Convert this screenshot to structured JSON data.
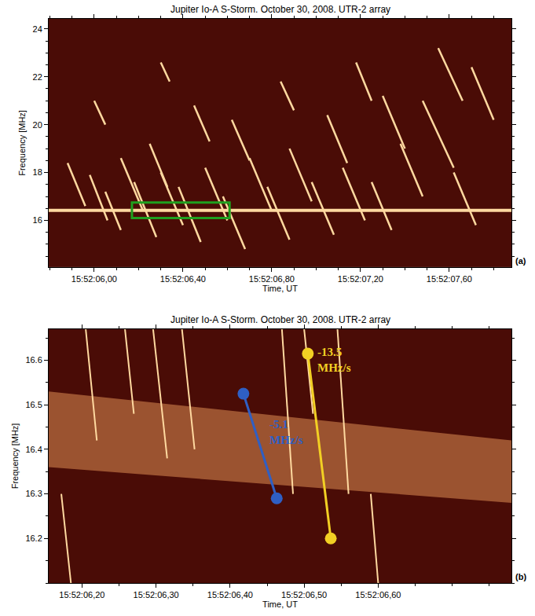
{
  "chart_data": [
    {
      "type": "line",
      "title": "Jupiter Io-A S-Storm. October 30, 2008. UTR-2 array",
      "x_label": "Time, UT",
      "y_label": "Frequency [MHz]",
      "panel": "(a)",
      "color": "#ffd9a0",
      "xlim": [
        5.795,
        7.88
      ],
      "ylim": [
        14.05,
        24.42
      ],
      "xticks": [
        {
          "value": 6.0,
          "label": "15:52:06,00"
        },
        {
          "value": 6.4,
          "label": "15:52:06,40"
        },
        {
          "value": 6.8,
          "label": "15:52:06,80"
        },
        {
          "value": 7.2,
          "label": "15:52:07,20"
        },
        {
          "value": 7.6,
          "label": "15:52:07,60"
        }
      ],
      "yticks": [
        16,
        18,
        20,
        22,
        24
      ],
      "bursts": [
        {
          "x": [
            5.88,
            5.96
          ],
          "y": [
            18.4,
            16.6
          ]
        },
        {
          "x": [
            5.98,
            6.06
          ],
          "y": [
            17.9,
            16.0
          ]
        },
        {
          "x": [
            6.05,
            6.12
          ],
          "y": [
            17.2,
            15.6
          ]
        },
        {
          "x": [
            6.12,
            6.22
          ],
          "y": [
            18.6,
            16.4
          ]
        },
        {
          "x": [
            6.18,
            6.28
          ],
          "y": [
            17.6,
            15.3
          ]
        },
        {
          "x": [
            6.25,
            6.33
          ],
          "y": [
            19.2,
            17.4
          ]
        },
        {
          "x": [
            6.3,
            6.4
          ],
          "y": [
            18.0,
            15.8
          ]
        },
        {
          "x": [
            6.38,
            6.48
          ],
          "y": [
            17.4,
            15.1
          ]
        },
        {
          "x": [
            6.45,
            6.52
          ],
          "y": [
            20.8,
            19.3
          ]
        },
        {
          "x": [
            6.5,
            6.6
          ],
          "y": [
            18.2,
            16.0
          ]
        },
        {
          "x": [
            6.58,
            6.68
          ],
          "y": [
            17.0,
            14.8
          ]
        },
        {
          "x": [
            6.62,
            6.7
          ],
          "y": [
            20.2,
            18.5
          ]
        },
        {
          "x": [
            6.7,
            6.8
          ],
          "y": [
            18.6,
            16.4
          ]
        },
        {
          "x": [
            6.78,
            6.88
          ],
          "y": [
            17.4,
            15.2
          ]
        },
        {
          "x": [
            6.84,
            6.9
          ],
          "y": [
            21.8,
            20.6
          ]
        },
        {
          "x": [
            6.88,
            6.98
          ],
          "y": [
            19.0,
            16.8
          ]
        },
        {
          "x": [
            6.98,
            7.08
          ],
          "y": [
            17.6,
            15.4
          ]
        },
        {
          "x": [
            7.05,
            7.14
          ],
          "y": [
            20.4,
            18.4
          ]
        },
        {
          "x": [
            7.12,
            7.22
          ],
          "y": [
            18.2,
            16.0
          ]
        },
        {
          "x": [
            7.18,
            7.25
          ],
          "y": [
            22.6,
            21.0
          ]
        },
        {
          "x": [
            7.25,
            7.34
          ],
          "y": [
            17.6,
            15.6
          ]
        },
        {
          "x": [
            7.3,
            7.4
          ],
          "y": [
            21.2,
            19.0
          ]
        },
        {
          "x": [
            7.38,
            7.48
          ],
          "y": [
            19.2,
            17.0
          ]
        },
        {
          "x": [
            7.48,
            7.62
          ],
          "y": [
            21.0,
            18.2
          ]
        },
        {
          "x": [
            7.55,
            7.66
          ],
          "y": [
            23.2,
            21.0
          ]
        },
        {
          "x": [
            7.62,
            7.72
          ],
          "y": [
            18.0,
            15.8
          ]
        },
        {
          "x": [
            6.3,
            6.34
          ],
          "y": [
            22.6,
            21.8
          ]
        },
        {
          "x": [
            6.0,
            6.05
          ],
          "y": [
            21.0,
            20.0
          ]
        },
        {
          "x": [
            7.7,
            7.8
          ],
          "y": [
            22.4,
            20.2
          ]
        }
      ],
      "band": {
        "x": [
          5.795,
          7.88
        ],
        "y": [
          16.42,
          16.42
        ]
      },
      "highlight": {
        "x": [
          6.17,
          6.61
        ],
        "y": [
          16.1,
          16.75
        ],
        "color": "#1fa01f"
      }
    },
    {
      "type": "line",
      "title": "Jupiter Io-A S-Storm. October 30, 2008. UTR-2 array",
      "x_label": "Time, UT",
      "y_label": "Frequency [MHz]",
      "panel": "(b)",
      "color": "#ffd9a0",
      "xlim": [
        6.155,
        6.78
      ],
      "ylim": [
        16.1,
        16.67
      ],
      "xticks": [
        {
          "value": 6.2,
          "label": "15:52:06,20"
        },
        {
          "value": 6.3,
          "label": "15:52:06,30"
        },
        {
          "value": 6.4,
          "label": "15:52:06,40"
        },
        {
          "value": 6.5,
          "label": "15:52:06,50"
        },
        {
          "value": 6.6,
          "label": "15:52:06,60"
        }
      ],
      "yticks": [
        16.2,
        16.3,
        16.4,
        16.5,
        16.6
      ],
      "bursts": [
        {
          "x": [
            6.172,
            6.185
          ],
          "y": [
            16.3,
            16.1
          ]
        },
        {
          "x": [
            6.205,
            6.22
          ],
          "y": [
            16.67,
            16.42
          ]
        },
        {
          "x": [
            6.258,
            6.27
          ],
          "y": [
            16.67,
            16.48
          ]
        },
        {
          "x": [
            6.296,
            6.315
          ],
          "y": [
            16.67,
            16.38
          ]
        },
        {
          "x": [
            6.335,
            6.352
          ],
          "y": [
            16.67,
            16.4
          ]
        },
        {
          "x": [
            6.47,
            6.485
          ],
          "y": [
            16.67,
            16.3
          ]
        },
        {
          "x": [
            6.5,
            6.512
          ],
          "y": [
            16.67,
            16.48
          ]
        },
        {
          "x": [
            6.545,
            6.56
          ],
          "y": [
            16.67,
            16.3
          ]
        },
        {
          "x": [
            6.59,
            6.6
          ],
          "y": [
            16.3,
            16.1
          ]
        }
      ],
      "band": {
        "x": [
          6.155,
          6.78
        ],
        "upper": [
          16.53,
          16.42
        ],
        "lower": [
          16.36,
          16.28
        ]
      },
      "markers": [
        {
          "x": [
            6.418,
            6.463
          ],
          "y": [
            16.525,
            16.29
          ],
          "color": "#2f5fc4",
          "label": "-5.1 MHz/s"
        },
        {
          "x": [
            6.505,
            6.536
          ],
          "y": [
            16.615,
            16.2
          ],
          "color": "#f2d024",
          "label": "-13.5 MHz/s"
        }
      ]
    }
  ]
}
